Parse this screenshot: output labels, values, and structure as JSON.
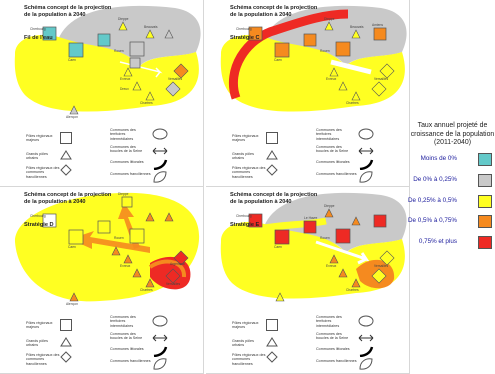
{
  "panels": [
    {
      "title": "Schéma concept de la projection de la population à 2040",
      "strategy": "Fil de l'eau"
    },
    {
      "title": "Schéma concept de la projection de la population à 2040",
      "strategy": "Stratégie C"
    },
    {
      "title": "Schéma concept de la projection de la population à 2040",
      "strategy": "Stratégie D"
    },
    {
      "title": "Schéma concept de la projection de la population à 2040",
      "strategy": "Stratégie E"
    }
  ],
  "map_labels": {
    "cherbourg": "Cherbourg",
    "caen": "Caen",
    "rouen": "Rouen",
    "le_havre": "Le Havre",
    "dieppe": "Dieppe",
    "amiens": "Amiens",
    "beauvais": "Beauvais",
    "compiegne": "Compiègne",
    "evreux": "Evreux",
    "dreux": "Dreux",
    "chartres": "Chartres",
    "versailles": "Versailles",
    "alencon": "Alençon",
    "argenteuil": "Argenteuil"
  },
  "legend": {
    "poles_majeurs": "Pôles régionaux majeurs",
    "grands_poles": "Grands pôles urbains",
    "poles_franciliens": "Pôles régionaux des communes franciliennes",
    "territoires": "Communes des territoires intermédiaires",
    "boucles": "Communes des boucles de la Seine",
    "littorales": "Communes littorales",
    "franciliennes": "Communes franciliennes"
  },
  "growth_legend": {
    "title": "Taux annuel projeté de croissance de la population (2011-2040)",
    "items": [
      {
        "label": "Moins de 0%",
        "color": "#63c9c9"
      },
      {
        "label": "De 0% à 0,25%",
        "color": "#c9c9c9"
      },
      {
        "label": "De 0,25% à 0,5%",
        "color": "#ffff22"
      },
      {
        "label": "De 0,5% à 0,75%",
        "color": "#f58a1f"
      },
      {
        "label": "0,75% et plus",
        "color": "#ee2a24"
      }
    ]
  }
}
